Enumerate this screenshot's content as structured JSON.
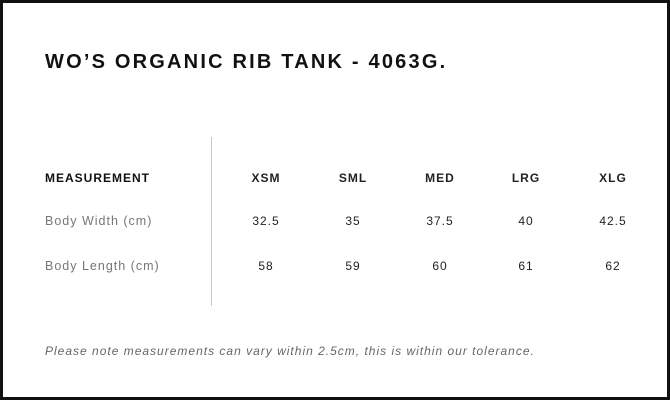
{
  "title": "WO’S ORGANIC RIB TANK - 4063G.",
  "table": {
    "header": "MEASUREMENT",
    "sizes": [
      "XSM",
      "SML",
      "MED",
      "LRG",
      "XLG"
    ],
    "rows": [
      {
        "label": "Body Width (cm)",
        "values": [
          "32.5",
          "35",
          "37.5",
          "40",
          "42.5"
        ]
      },
      {
        "label": "Body Length (cm)",
        "values": [
          "58",
          "59",
          "60",
          "61",
          "62"
        ]
      }
    ]
  },
  "note": "Please note measurements can vary within 2.5cm, this is within our tolerance."
}
